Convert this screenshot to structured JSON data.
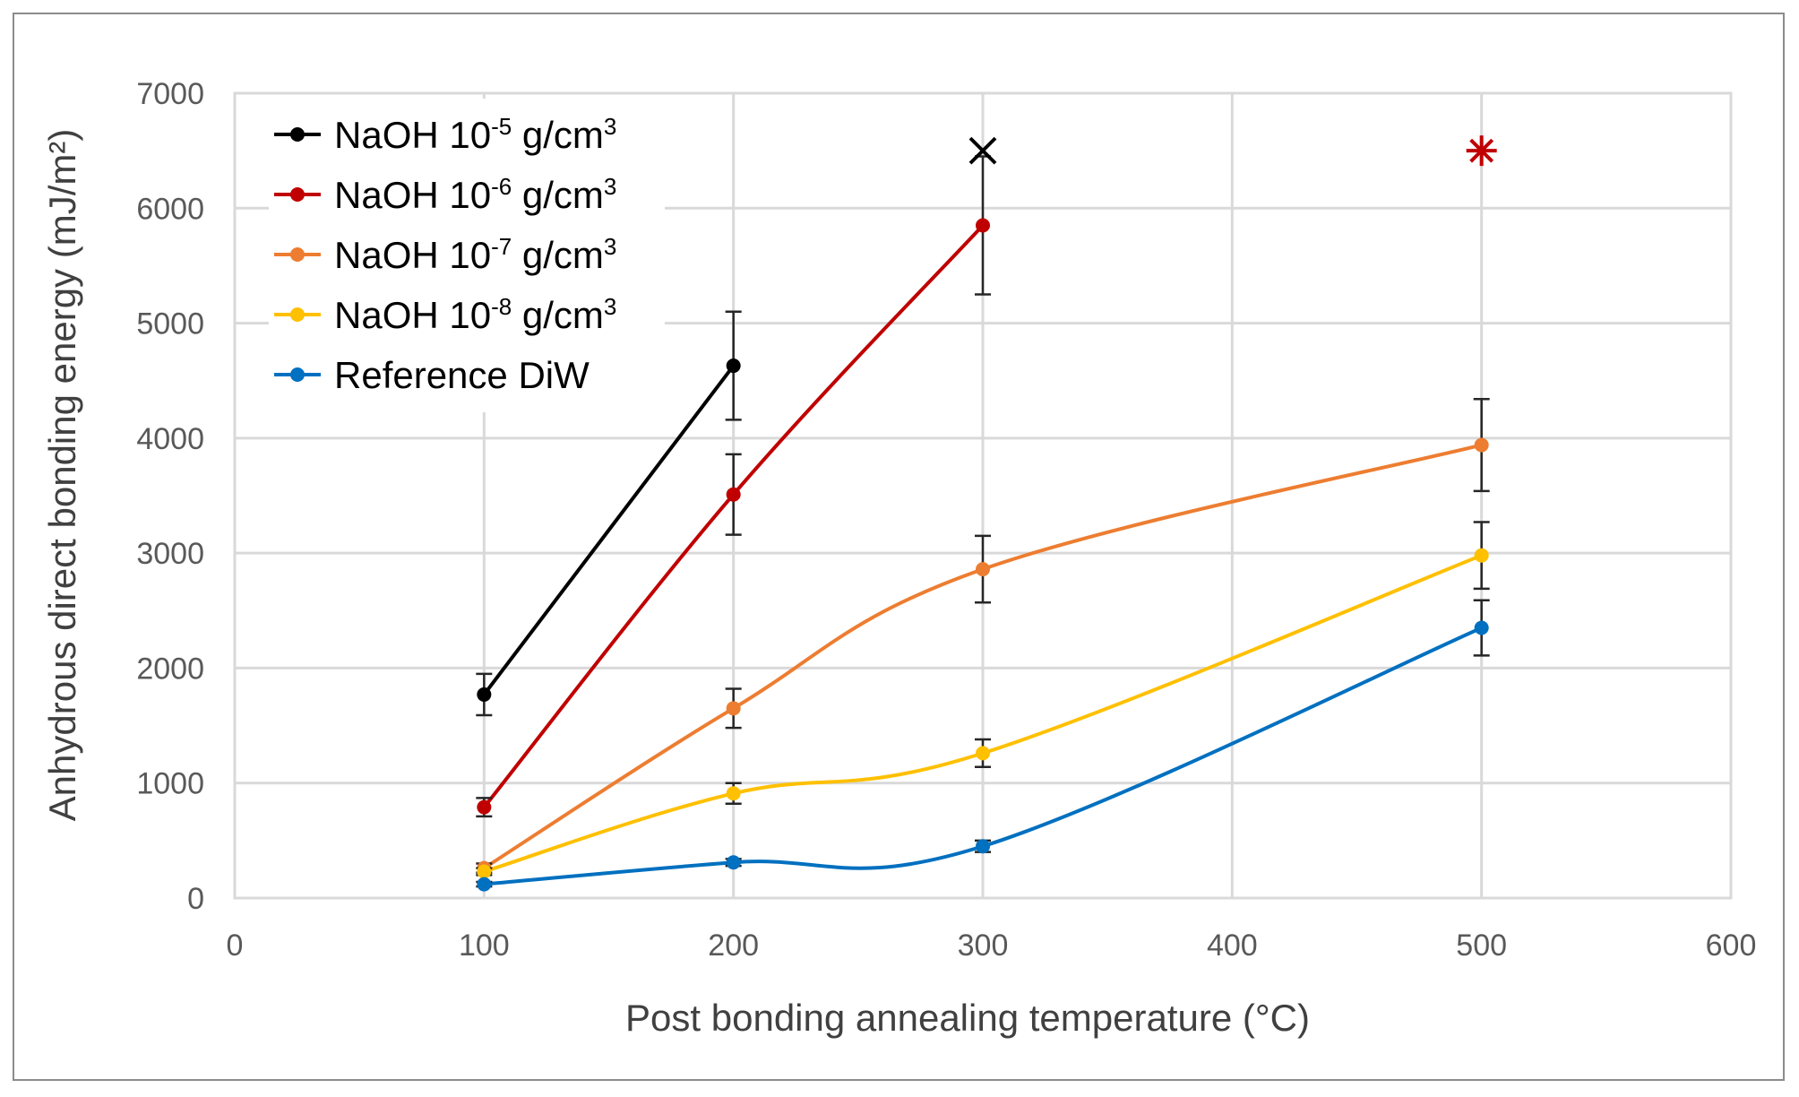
{
  "chart_data": {
    "type": "line",
    "title": "",
    "xlabel": "Post bonding annealing temperature (°C)",
    "ylabel": "Anhydrous direct bonding energy (mJ/m²)",
    "xlim": [
      0,
      600
    ],
    "ylim": [
      0,
      7000
    ],
    "xticks": [
      "0",
      "100",
      "200",
      "300",
      "400",
      "500",
      "600"
    ],
    "yticks": [
      "0",
      "1000",
      "2000",
      "3000",
      "4000",
      "5000",
      "6000",
      "7000"
    ],
    "grid": true,
    "legend_position": "top-left",
    "series": [
      {
        "name": "NaOH 10",
        "exp": "-5",
        "unit": " g/cm",
        "unit_exp": "3",
        "color": "#000000",
        "x": [
          100,
          200
        ],
        "y": [
          1770,
          4630
        ],
        "err": [
          180,
          470
        ]
      },
      {
        "name": "NaOH 10",
        "exp": "-6",
        "unit": " g/cm",
        "unit_exp": "3",
        "color": "#c00000",
        "x": [
          100,
          200,
          300
        ],
        "y": [
          790,
          3510,
          5850
        ],
        "err": [
          80,
          350,
          600
        ]
      },
      {
        "name": "NaOH 10",
        "exp": "-7",
        "unit": " g/cm",
        "unit_exp": "3",
        "color": "#ed7d31",
        "x": [
          100,
          200,
          300,
          500
        ],
        "y": [
          260,
          1650,
          2860,
          3940
        ],
        "err": [
          40,
          170,
          290,
          400
        ]
      },
      {
        "name": "NaOH 10",
        "exp": "-8",
        "unit": " g/cm",
        "unit_exp": "3",
        "color": "#ffc000",
        "x": [
          100,
          200,
          300,
          500
        ],
        "y": [
          230,
          910,
          1260,
          2980
        ],
        "err": [
          30,
          90,
          120,
          290
        ]
      },
      {
        "name": "Reference DiW",
        "exp": "",
        "unit": "",
        "unit_exp": "",
        "color": "#0070c0",
        "x": [
          100,
          200,
          300,
          500
        ],
        "y": [
          120,
          310,
          450,
          2350
        ],
        "err": [
          20,
          30,
          50,
          240
        ]
      }
    ],
    "annotations": [
      {
        "symbol": "×",
        "x": 300,
        "y": 6500,
        "color": "#000000"
      },
      {
        "symbol": "*",
        "x": 500,
        "y": 6500,
        "color": "#c00000"
      }
    ]
  }
}
